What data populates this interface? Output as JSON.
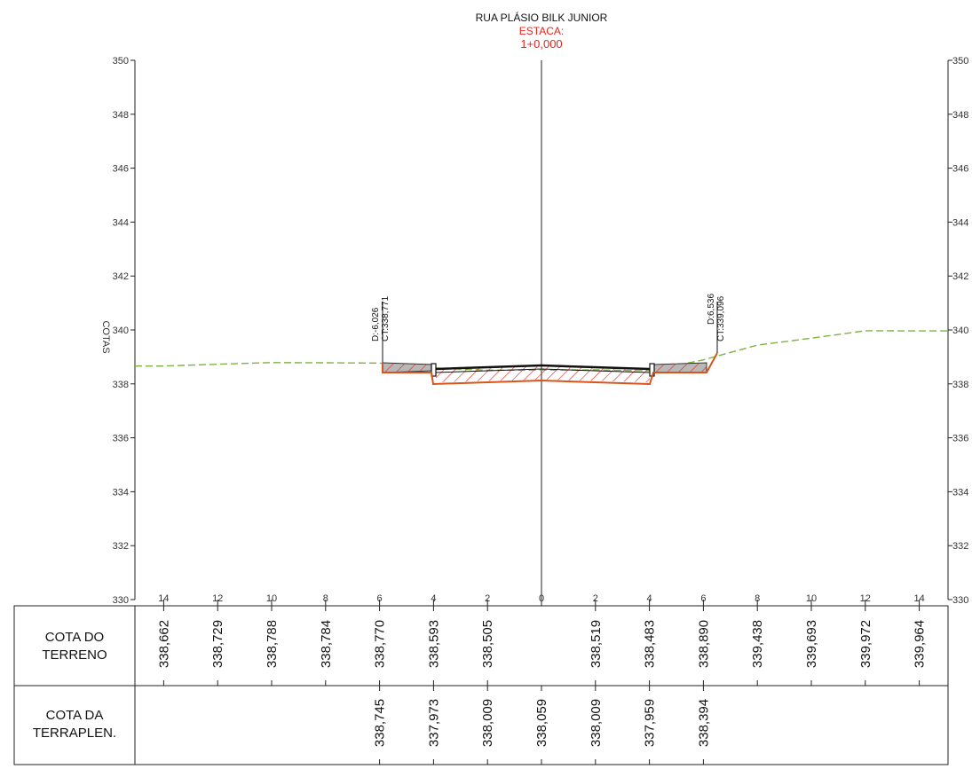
{
  "header": {
    "street": "RUA PLÁSIO BILK JUNIOR",
    "station_label": "ESTACA:",
    "station_value": "1+0,000"
  },
  "axis": {
    "label": "COTAS",
    "ylim": [
      330,
      350
    ],
    "y_ticks": [
      "350",
      "348",
      "346",
      "344",
      "342",
      "340",
      "338",
      "336",
      "334",
      "332",
      "330"
    ],
    "x_ticks": [
      "14",
      "12",
      "10",
      "8",
      "6",
      "4",
      "2",
      "0",
      "2",
      "4",
      "6",
      "8",
      "10",
      "12",
      "14"
    ]
  },
  "annotations": {
    "left_offset": "D:-6,026",
    "left_elev": "CT:338,771",
    "right_offset": "D:6,536",
    "right_elev": "CT:339,096"
  },
  "table": {
    "row1_label_line1": "COTA DO",
    "row1_label_line2": "TERRENO",
    "row2_label_line1": "COTA DA",
    "row2_label_line2": "TERRAPLEN.",
    "terreno": [
      {
        "offset": -14,
        "value": "338,662"
      },
      {
        "offset": -12,
        "value": "338,729"
      },
      {
        "offset": -10,
        "value": "338,788"
      },
      {
        "offset": -8,
        "value": "338,784"
      },
      {
        "offset": -6,
        "value": "338,770"
      },
      {
        "offset": -4,
        "value": "338,593"
      },
      {
        "offset": -2,
        "value": "338,505"
      },
      {
        "offset": 2,
        "value": "338,519"
      },
      {
        "offset": 4,
        "value": "338,483"
      },
      {
        "offset": 6,
        "value": "338,890"
      },
      {
        "offset": 8,
        "value": "339,438"
      },
      {
        "offset": 10,
        "value": "339,693"
      },
      {
        "offset": 12,
        "value": "339,972"
      },
      {
        "offset": 14,
        "value": "339,964"
      }
    ],
    "terraplen": [
      {
        "offset": -6,
        "value": "338,745"
      },
      {
        "offset": -4,
        "value": "337,973"
      },
      {
        "offset": -2,
        "value": "338,009"
      },
      {
        "offset": 0,
        "value": "338,059"
      },
      {
        "offset": 2,
        "value": "338,009"
      },
      {
        "offset": 4,
        "value": "337,959"
      },
      {
        "offset": 6,
        "value": "338,394"
      }
    ]
  },
  "colors": {
    "terrain": "#7cb342",
    "earthwork": "#d9541a",
    "hatch": "#e8231c",
    "station_text": "#e8231c",
    "sidewalk_fill": "#b8b8b8"
  }
}
